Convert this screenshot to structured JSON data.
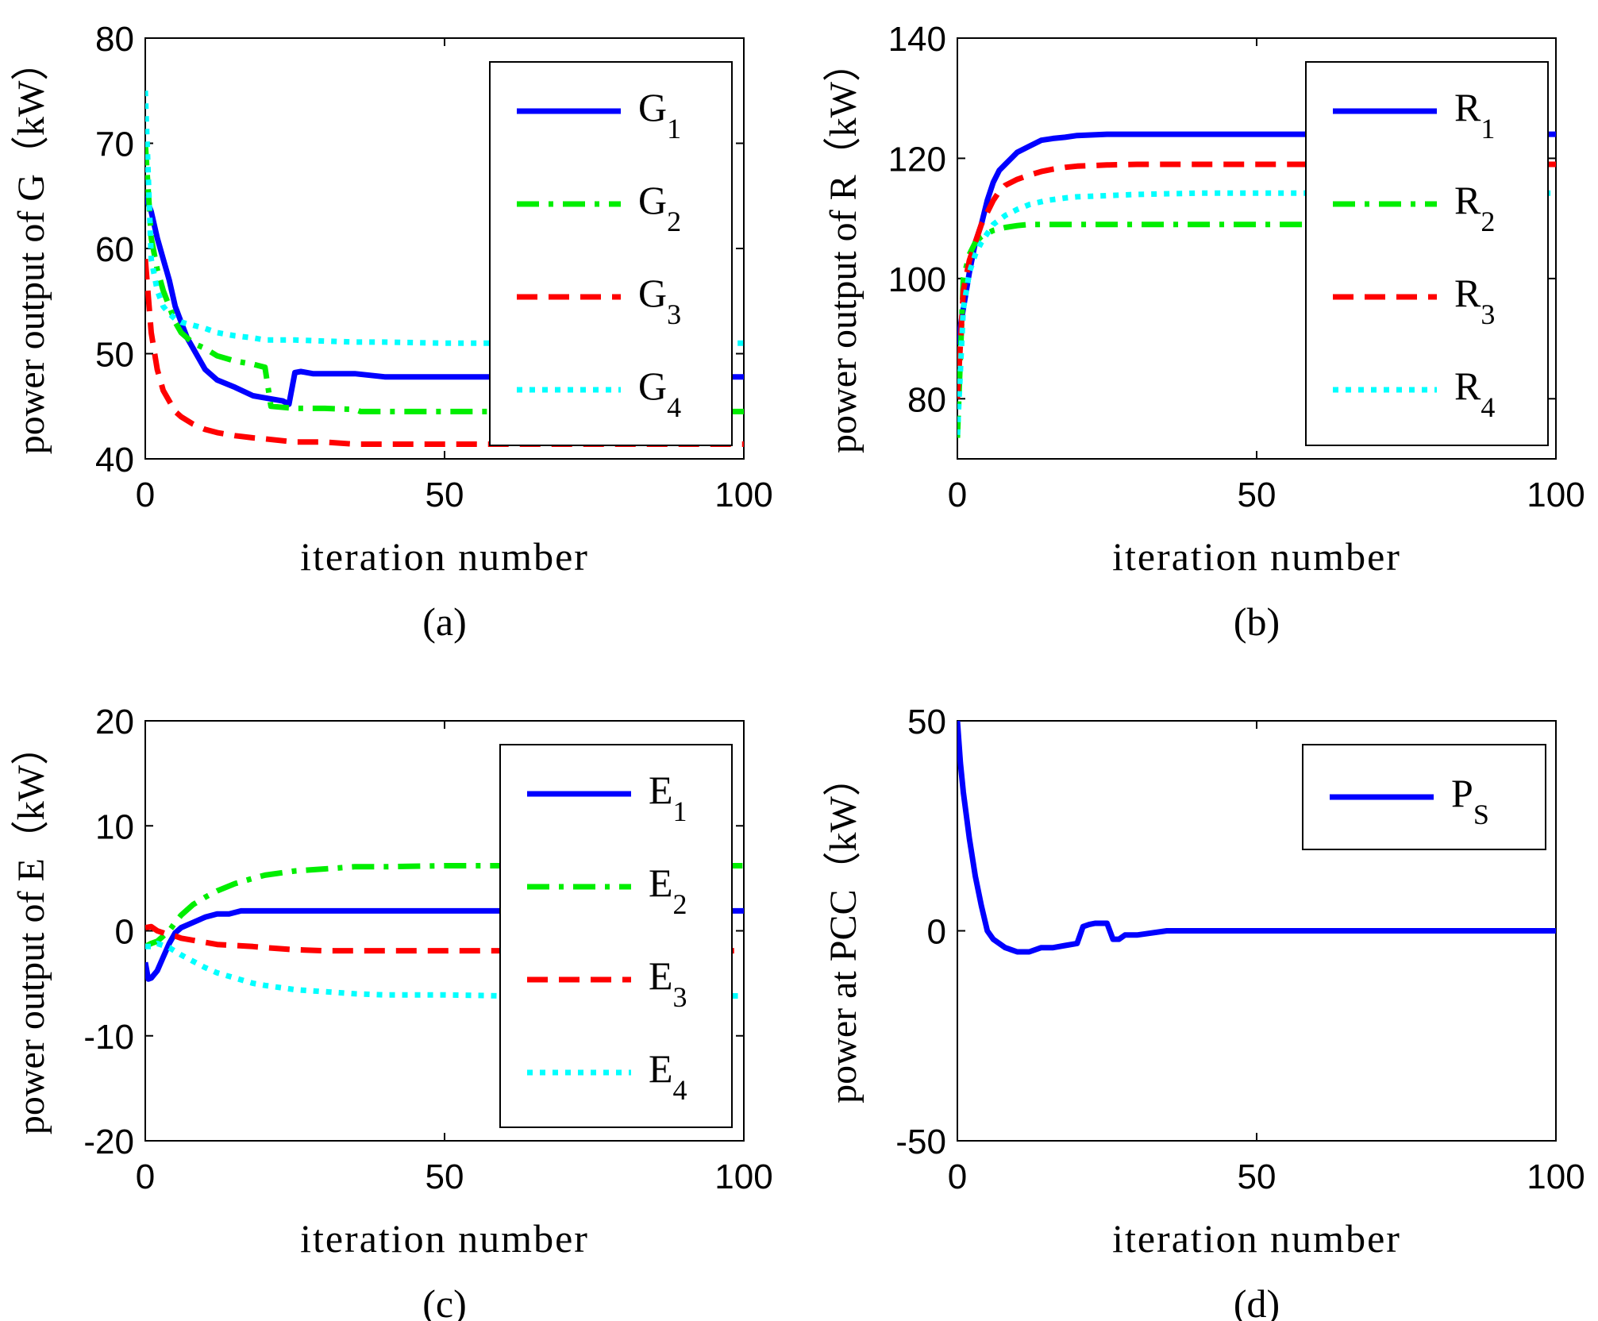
{
  "chart_data": [
    {
      "type": "line",
      "panel_label": "(a)",
      "xlabel": "iteration number",
      "ylabel": "power output of G（kW）",
      "xlim": [
        0,
        100
      ],
      "ylim": [
        40,
        80
      ],
      "xticks": [
        "0",
        "50",
        "100"
      ],
      "yticks": [
        "40",
        "50",
        "60",
        "70",
        "80"
      ],
      "legend_position": "top-right",
      "series": [
        {
          "name": "G",
          "sub": "1",
          "color": "#0000ff",
          "dash": "solid",
          "x": [
            0,
            1,
            2,
            3,
            4,
            5,
            6,
            7,
            8,
            10,
            12,
            15,
            18,
            20,
            23,
            24,
            25,
            26,
            28,
            30,
            35,
            40,
            50,
            60,
            80,
            100
          ],
          "y": [
            65,
            63.5,
            61,
            59,
            57,
            54.5,
            53,
            51.5,
            50.5,
            48.5,
            47.5,
            46.8,
            46,
            45.8,
            45.5,
            45.2,
            48.2,
            48.3,
            48.1,
            48.1,
            48.1,
            47.8,
            47.8,
            47.8,
            47.8,
            47.8
          ]
        },
        {
          "name": "G",
          "sub": "2",
          "color": "#00ee00",
          "dash": "dashdot",
          "x": [
            0,
            1,
            2,
            3,
            4,
            5,
            6,
            8,
            10,
            12,
            15,
            18,
            20,
            21,
            25,
            30,
            35,
            36,
            40,
            50,
            60,
            80,
            100
          ],
          "y": [
            70,
            61,
            58,
            56,
            54.5,
            53,
            52,
            51,
            50.5,
            49.8,
            49.3,
            49,
            48.7,
            45,
            44.8,
            44.8,
            44.7,
            44.5,
            44.5,
            44.5,
            44.5,
            44.5,
            44.5
          ]
        },
        {
          "name": "G",
          "sub": "3",
          "color": "#ff0000",
          "dash": "dash",
          "x": [
            0,
            1,
            2,
            3,
            4,
            5,
            6,
            8,
            10,
            12,
            15,
            18,
            20,
            25,
            30,
            35,
            40,
            50,
            60,
            80,
            100
          ],
          "y": [
            59,
            52,
            48.5,
            46.5,
            45.5,
            44.5,
            44,
            43.3,
            42.8,
            42.5,
            42.2,
            42,
            41.9,
            41.6,
            41.6,
            41.4,
            41.4,
            41.4,
            41.4,
            41.4,
            41.4
          ]
        },
        {
          "name": "G",
          "sub": "4",
          "color": "#00ffff",
          "dash": "dot",
          "x": [
            0,
            1,
            2,
            3,
            4,
            5,
            6,
            8,
            10,
            12,
            15,
            18,
            20,
            25,
            30,
            35,
            40,
            50,
            60,
            80,
            100
          ],
          "y": [
            75,
            59,
            56,
            54.5,
            53.8,
            53.3,
            53,
            52.7,
            52.4,
            52,
            51.7,
            51.5,
            51.3,
            51.3,
            51.2,
            51.1,
            51.1,
            51,
            51,
            51,
            51
          ]
        }
      ]
    },
    {
      "type": "line",
      "panel_label": "(b)",
      "xlabel": "iteration number",
      "ylabel": "power output of R（kW）",
      "xlim": [
        0,
        100
      ],
      "ylim": [
        70,
        140
      ],
      "xticks": [
        "0",
        "50",
        "100"
      ],
      "yticks": [
        "80",
        "100",
        "120",
        "140"
      ],
      "legend_position": "top-right",
      "series": [
        {
          "name": "R",
          "sub": "1",
          "color": "#0000ff",
          "dash": "solid",
          "x": [
            0,
            1,
            2,
            3,
            4,
            5,
            6,
            7,
            8,
            10,
            12,
            14,
            16,
            18,
            20,
            25,
            30,
            40,
            60,
            80,
            100
          ],
          "y": [
            89,
            95,
            101,
            106,
            109,
            113,
            116,
            118,
            119,
            121,
            122,
            123,
            123.3,
            123.5,
            123.8,
            124,
            124,
            124,
            124,
            124,
            124
          ]
        },
        {
          "name": "R",
          "sub": "2",
          "color": "#00ee00",
          "dash": "dashdot",
          "x": [
            0,
            1,
            2,
            3,
            4,
            5,
            6,
            8,
            10,
            12,
            15,
            20,
            30,
            40,
            60,
            80,
            100
          ],
          "y": [
            73.5,
            100,
            104,
            106,
            107,
            107.5,
            108,
            108.5,
            108.8,
            109,
            109,
            109,
            109,
            109,
            109,
            109,
            109
          ]
        },
        {
          "name": "R",
          "sub": "3",
          "color": "#ff0000",
          "dash": "dash",
          "x": [
            0,
            1,
            2,
            3,
            4,
            5,
            6,
            7,
            8,
            10,
            12,
            14,
            16,
            18,
            20,
            25,
            30,
            40,
            60,
            80,
            100
          ],
          "y": [
            80,
            98,
            103,
            106,
            109,
            111,
            113,
            114.5,
            115.5,
            116.5,
            117.2,
            117.8,
            118.2,
            118.5,
            118.7,
            118.9,
            119,
            119,
            119,
            119,
            119
          ]
        },
        {
          "name": "R",
          "sub": "4",
          "color": "#00ffff",
          "dash": "dot",
          "x": [
            0,
            1,
            2,
            3,
            4,
            5,
            6,
            8,
            10,
            12,
            15,
            18,
            20,
            25,
            30,
            40,
            60,
            80,
            100
          ],
          "y": [
            74,
            95,
            101,
            104,
            106,
            107.5,
            109,
            110.5,
            111.5,
            112.3,
            113,
            113.4,
            113.6,
            113.8,
            114,
            114.2,
            114.2,
            114.2,
            114.2
          ]
        }
      ]
    },
    {
      "type": "line",
      "panel_label": "(c)",
      "xlabel": "iteration number",
      "ylabel": "power output of E（kW）",
      "xlim": [
        0,
        100
      ],
      "ylim": [
        -20,
        20
      ],
      "xticks": [
        "0",
        "50",
        "100"
      ],
      "yticks": [
        "-20",
        "-10",
        "0",
        "10",
        "20"
      ],
      "legend_position": "top-right",
      "series": [
        {
          "name": "E",
          "sub": "1",
          "color": "#0000ff",
          "dash": "solid",
          "x": [
            0,
            0.5,
            1,
            2,
            3,
            4,
            5,
            6,
            8,
            10,
            12,
            14,
            16,
            20,
            25,
            30,
            40,
            60,
            80,
            100
          ],
          "y": [
            -3,
            -4.6,
            -4.5,
            -3.8,
            -2.5,
            -1.2,
            -0.2,
            0.3,
            0.8,
            1.3,
            1.6,
            1.6,
            1.9,
            1.9,
            1.9,
            1.9,
            1.9,
            1.9,
            1.9,
            1.9
          ]
        },
        {
          "name": "E",
          "sub": "2",
          "color": "#00ee00",
          "dash": "dashdot",
          "x": [
            0,
            1,
            2,
            3,
            4,
            5,
            6,
            8,
            10,
            12,
            15,
            18,
            20,
            25,
            30,
            35,
            40,
            50,
            60,
            80,
            100
          ],
          "y": [
            -1.5,
            -1.2,
            -1,
            -0.5,
            0,
            0.8,
            1.5,
            2.5,
            3.2,
            3.8,
            4.5,
            5,
            5.3,
            5.7,
            5.9,
            6.1,
            6.1,
            6.2,
            6.2,
            6.2,
            6.2
          ]
        },
        {
          "name": "E",
          "sub": "3",
          "color": "#ff0000",
          "dash": "dash",
          "x": [
            0,
            1,
            2,
            3,
            4,
            5,
            6,
            8,
            10,
            12,
            15,
            18,
            20,
            25,
            30,
            40,
            60,
            80,
            100
          ],
          "y": [
            0.3,
            0.4,
            0,
            -0.2,
            -0.4,
            -0.5,
            -0.7,
            -0.9,
            -1.1,
            -1.3,
            -1.4,
            -1.5,
            -1.6,
            -1.8,
            -1.9,
            -1.9,
            -1.9,
            -1.9,
            -1.9
          ]
        },
        {
          "name": "E",
          "sub": "4",
          "color": "#00ffff",
          "dash": "dot",
          "x": [
            0,
            1,
            2,
            4,
            6,
            8,
            10,
            12,
            15,
            18,
            20,
            25,
            30,
            35,
            40,
            50,
            60,
            80,
            100
          ],
          "y": [
            -1.5,
            -1.5,
            -1.2,
            -1.6,
            -2.3,
            -2.9,
            -3.5,
            -4,
            -4.5,
            -5,
            -5.2,
            -5.6,
            -5.8,
            -6,
            -6.1,
            -6.1,
            -6.2,
            -6.2,
            -6.2
          ]
        }
      ]
    },
    {
      "type": "line",
      "panel_label": "(d)",
      "xlabel": "iteration number",
      "ylabel": "power at PCC（kW）",
      "xlim": [
        0,
        100
      ],
      "ylim": [
        -50,
        50
      ],
      "xticks": [
        "0",
        "50",
        "100"
      ],
      "yticks": [
        "-50",
        "0",
        "50"
      ],
      "legend_position": "top-right",
      "series": [
        {
          "name": "P",
          "sub": "S",
          "color": "#0000ff",
          "dash": "solid",
          "x": [
            0,
            0.5,
            1,
            2,
            3,
            4,
            5,
            6,
            8,
            10,
            12,
            14,
            16,
            18,
            20,
            21,
            22,
            23,
            24,
            25,
            26,
            27,
            28,
            30,
            35,
            40,
            60,
            80,
            100
          ],
          "y": [
            50,
            40,
            33,
            22,
            13,
            6,
            0,
            -2,
            -4,
            -5,
            -5,
            -4,
            -4,
            -3.5,
            -3,
            1,
            1.5,
            1.8,
            1.8,
            1.8,
            -2,
            -2,
            -1,
            -1,
            0,
            0,
            0,
            0,
            0
          ]
        }
      ]
    }
  ]
}
